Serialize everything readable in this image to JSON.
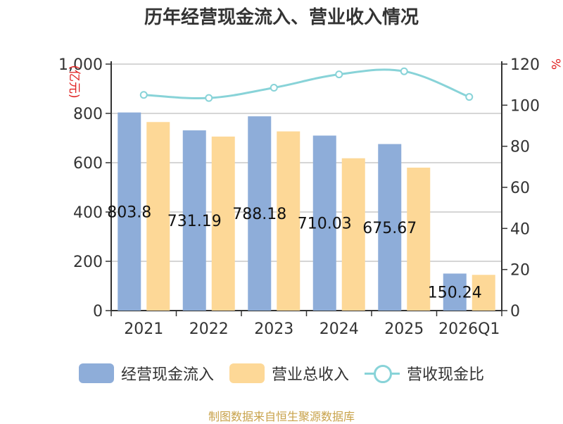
{
  "title": "历年经营现金流入、营业收入情况",
  "source_note": "制图数据来自恒生聚源数据库",
  "colors": {
    "cash_inflow": "#8eadd9",
    "revenue": "#fdd897",
    "ratio": "#88d3d8",
    "unit_text": "#e02020"
  },
  "chart_data": {
    "type": "bar",
    "title": "历年经营现金流入、营业收入情况",
    "categories": [
      "2021",
      "2022",
      "2023",
      "2024",
      "2025",
      "2026Q1"
    ],
    "y_left": {
      "label": "(亿元)",
      "ylim": [
        0,
        1000
      ],
      "ticks": [
        "1,000",
        "800",
        "600",
        "400",
        "200",
        "0"
      ]
    },
    "y_right": {
      "label": "%",
      "ylim": [
        0,
        120
      ],
      "ticks": [
        "120",
        "100",
        "80",
        "60",
        "40",
        "20",
        "0"
      ]
    },
    "series": [
      {
        "name": "经营现金流入",
        "type": "bar",
        "axis": "left",
        "values": [
          803.8,
          731.19,
          788.18,
          710.03,
          675.67,
          150.24
        ],
        "labels": [
          "803.8",
          "731.19",
          "788.18",
          "710.03",
          "675.67",
          "150.24"
        ]
      },
      {
        "name": "营业总收入",
        "type": "bar",
        "axis": "left",
        "values": [
          765,
          706,
          727,
          618,
          580,
          145
        ]
      },
      {
        "name": "营收现金比",
        "type": "line",
        "axis": "right",
        "values": [
          105,
          103.5,
          108.5,
          115,
          116.5,
          104
        ]
      }
    ],
    "grid": true,
    "legend_position": "bottom"
  }
}
